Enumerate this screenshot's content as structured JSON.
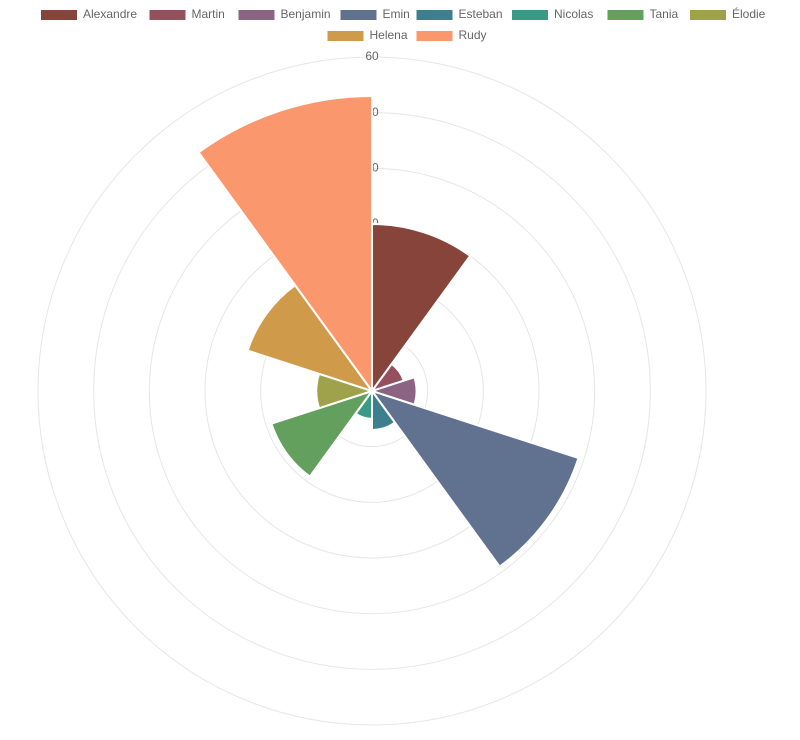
{
  "chart_data": {
    "type": "polarArea",
    "categories": [
      "Alexandre",
      "Martin",
      "Benjamin",
      "Emin",
      "Esteban",
      "Nicolas",
      "Tania",
      "Élodie",
      "Helena",
      "Rudy"
    ],
    "values": [
      30,
      6,
      8,
      39,
      7,
      5,
      19,
      10,
      23.5,
      53
    ],
    "colors": [
      "#86443a",
      "#95505f",
      "#8a6482",
      "#617290",
      "#3c8090",
      "#3a9a85",
      "#63a05d",
      "#9fa24a",
      "#cf9b4a",
      "#fa976d"
    ],
    "rlim": [
      0,
      60
    ],
    "rticks": [
      0,
      10,
      20,
      30,
      40,
      50,
      60
    ],
    "grid": true,
    "legend": "top"
  }
}
